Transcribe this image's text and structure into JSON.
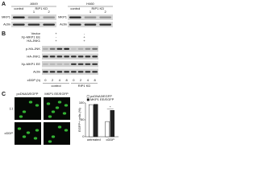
{
  "panel_a": {
    "label": "A",
    "cells": [
      "A549",
      "H460"
    ],
    "groups": [
      "control",
      "RIP1 KD"
    ],
    "clones": [
      "1",
      "2"
    ],
    "rows": [
      "MKP1",
      "Actin"
    ]
  },
  "panel_b": {
    "label": "B",
    "treatments": [
      {
        "name": "Vector",
        "signs": [
          "+",
          "-"
        ]
      },
      {
        "name": "Xp-MKP1 EE",
        "signs": [
          "-",
          "+"
        ]
      },
      {
        "name": "HA-JNK1",
        "signs": [
          "+",
          "+"
        ]
      }
    ],
    "rows": [
      "p-HA-JNK",
      "HA-JNK1",
      "Xp-MKP1 EE",
      "Actin"
    ],
    "time_label": "cDDP (h)",
    "times": [
      "0",
      "2",
      "4",
      "8",
      "0",
      "2",
      "4",
      "8"
    ],
    "groups": [
      "control",
      "RIP1 KD"
    ]
  },
  "panel_c": {
    "label": "C",
    "columns": [
      "pcDNA3/EGFP",
      "MKP1 EE/EGFP"
    ],
    "rows": [
      "(-)",
      "cDDP"
    ],
    "chart": {
      "type": "bar",
      "y_label": "EGFP+ cells (%)",
      "categories": [
        "untreated",
        "cDDP"
      ],
      "series": [
        {
          "name": "pcDNA3/EGFP",
          "color": "#ffffff",
          "values": [
            95,
            45
          ]
        },
        {
          "name": "MKP1 EE/EGFP",
          "color": "#222222",
          "values": [
            96,
            78
          ]
        }
      ],
      "ylim": [
        0,
        100
      ],
      "yticks": [
        0,
        50,
        100
      ],
      "annotation": "*"
    }
  }
}
